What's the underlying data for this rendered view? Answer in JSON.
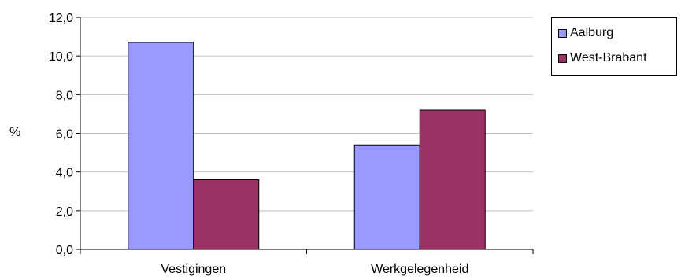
{
  "chart_data": {
    "type": "bar",
    "categories": [
      "Vestigingen",
      "Werkgelegenheid"
    ],
    "series": [
      {
        "name": "Aalburg",
        "values": [
          10.7,
          5.4
        ],
        "color": "#9999ff"
      },
      {
        "name": "West-Brabant",
        "values": [
          3.6,
          7.2
        ],
        "color": "#993366"
      }
    ],
    "ylabel": "%",
    "ylim": [
      0,
      12
    ],
    "yticks": [
      "0,0",
      "2,0",
      "4,0",
      "6,0",
      "8,0",
      "10,0",
      "12,0"
    ],
    "grid": true,
    "legend": "right"
  }
}
